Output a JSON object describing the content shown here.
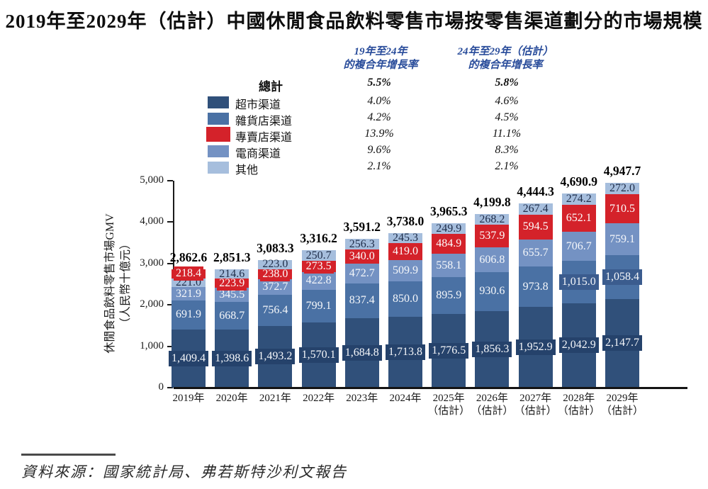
{
  "title": "2019年至2029年（估計）中國休閒食品飲料零售市場按零售渠道劃分的市場規模",
  "legend": {
    "col1_line1": "19年至24年",
    "col1_line2": "的複合年增長率",
    "col2_line1": "24年至29年（估計）",
    "col2_line2": "的複合年增長率",
    "total_label": "總計",
    "total_cagr_19_24": "5.5%",
    "total_cagr_24_29": "5.8%",
    "rows": [
      {
        "label": "超市渠道",
        "color": "#30507a",
        "cagr_19_24": "4.0%",
        "cagr_24_29": "4.6%"
      },
      {
        "label": "雜貨店渠道",
        "color": "#4a71a4",
        "cagr_19_24": "4.2%",
        "cagr_24_29": "4.5%"
      },
      {
        "label": "專賣店渠道",
        "color": "#d4222a",
        "cagr_19_24": "13.9%",
        "cagr_24_29": "11.1%"
      },
      {
        "label": "電商渠道",
        "color": "#7492c3",
        "cagr_19_24": "9.6%",
        "cagr_24_29": "8.3%"
      },
      {
        "label": "其他",
        "color": "#a6bedd",
        "cagr_19_24": "2.1%",
        "cagr_24_29": "2.1%"
      }
    ]
  },
  "chart_data": {
    "type": "bar",
    "stacked": true,
    "title": "2019年至2029年（估計）中國休閒食品飲料零售市場按零售渠道劃分的市場規模",
    "ylabel_line1": "休閒食品飲料零售市場GMV",
    "ylabel_line2": "（人民幣十億元）",
    "ylim": [
      0,
      5000
    ],
    "ytick_labels": [
      "0",
      "1,000",
      "2,000",
      "3,000",
      "4,000",
      "5,000"
    ],
    "categories": [
      "2019年",
      "2020年",
      "2021年",
      "2022年",
      "2023年",
      "2024年",
      "2025年",
      "2026年",
      "2027年",
      "2028年",
      "2029年"
    ],
    "estimate_suffix": "（估計）",
    "estimate_from_index": 6,
    "legend_position": "top",
    "grid": false,
    "series": [
      {
        "name": "超市渠道",
        "color": "#30507a",
        "values": [
          1409.4,
          1398.6,
          1493.2,
          1570.1,
          1684.8,
          1713.8,
          1776.5,
          1856.3,
          1952.9,
          2042.9,
          2147.7
        ]
      },
      {
        "name": "雜貨店渠道",
        "color": "#4a71a4",
        "values": [
          691.9,
          668.7,
          756.4,
          799.1,
          837.4,
          850.0,
          895.9,
          930.6,
          973.8,
          1015.0,
          1058.4
        ]
      },
      {
        "name": "電商渠道",
        "color": "#7492c3",
        "values": [
          321.9,
          345.5,
          372.7,
          422.8,
          472.7,
          509.9,
          558.1,
          606.8,
          655.7,
          706.7,
          759.1
        ]
      },
      {
        "name": "專賣店渠道",
        "color": "#d4222a",
        "values": [
          218.4,
          223.9,
          238.0,
          273.5,
          340.0,
          419.0,
          484.9,
          537.9,
          594.5,
          652.1,
          710.5
        ]
      },
      {
        "name": "其他",
        "color": "#a6bedd",
        "values": [
          221.0,
          214.6,
          223.0,
          250.7,
          256.3,
          245.3,
          249.9,
          268.2,
          267.4,
          274.2,
          272.0
        ]
      }
    ],
    "totals": [
      2862.6,
      2851.3,
      3083.3,
      3316.2,
      3591.2,
      3738.0,
      3965.3,
      4199.8,
      4444.3,
      4690.9,
      4947.7
    ]
  },
  "source": "資料來源：國家統計局、弗若斯特沙利文報告"
}
